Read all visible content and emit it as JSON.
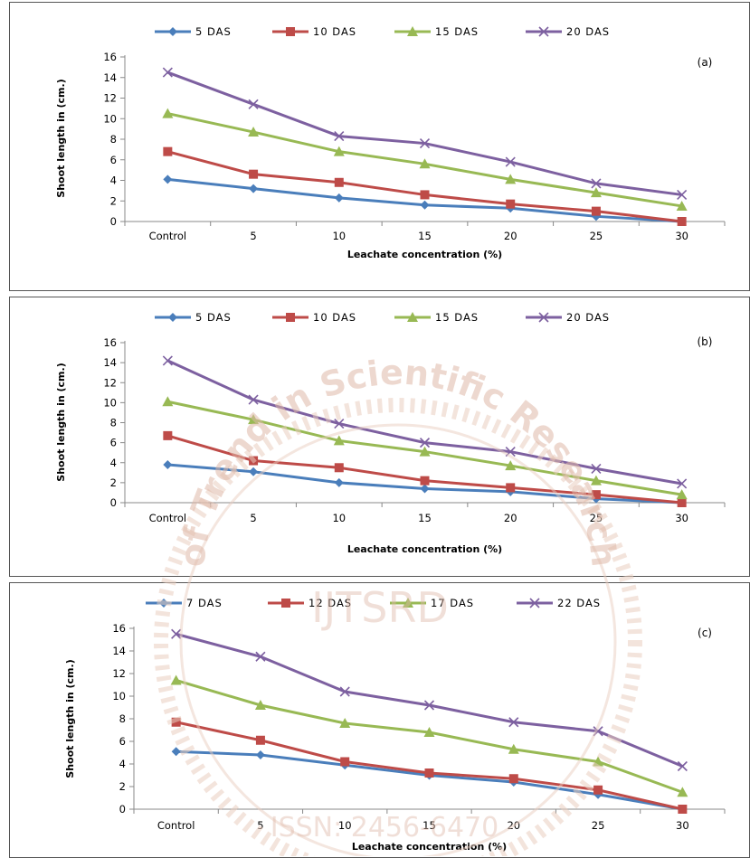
{
  "chart_data": [
    {
      "type": "line",
      "panel_label": "(a)",
      "categories": [
        "Control",
        "5",
        "10",
        "15",
        "20",
        "25",
        "30"
      ],
      "xlabel": "Leachate concentration  (%)",
      "ylabel": "Shoot length in (cm.)",
      "ylim": [
        0,
        16
      ],
      "yticks": [
        "0",
        "2",
        "4",
        "6",
        "8",
        "10",
        "12",
        "14",
        "16"
      ],
      "grid": false,
      "legend": "top",
      "series": [
        {
          "name": "5 DAS",
          "color": "#4a7ebb",
          "marker": "diamond",
          "values": [
            4.1,
            3.2,
            2.3,
            1.6,
            1.3,
            0.5,
            0.0
          ]
        },
        {
          "name": "10 DAS",
          "color": "#be4b48",
          "marker": "square",
          "values": [
            6.8,
            4.6,
            3.8,
            2.6,
            1.7,
            1.0,
            0.0
          ]
        },
        {
          "name": "15 DAS",
          "color": "#98b954",
          "marker": "triangle",
          "values": [
            10.5,
            8.7,
            6.8,
            5.6,
            4.1,
            2.8,
            1.5
          ]
        },
        {
          "name": "20 DAS",
          "color": "#7d60a0",
          "marker": "x",
          "values": [
            14.5,
            11.4,
            8.3,
            7.6,
            5.8,
            3.7,
            2.6
          ]
        }
      ]
    },
    {
      "type": "line",
      "panel_label": "(b)",
      "categories": [
        "Control",
        "5",
        "10",
        "15",
        "20",
        "25",
        "30"
      ],
      "xlabel": "Leachate concentration  (%)",
      "ylabel": "Shoot length in (cm.)",
      "ylim": [
        0,
        16
      ],
      "yticks": [
        "0",
        "2",
        "4",
        "6",
        "8",
        "10",
        "12",
        "14",
        "16"
      ],
      "grid": false,
      "legend": "top",
      "series": [
        {
          "name": "5 DAS",
          "color": "#4a7ebb",
          "marker": "diamond",
          "values": [
            3.8,
            3.1,
            2.0,
            1.4,
            1.1,
            0.4,
            0.0
          ]
        },
        {
          "name": "10 DAS",
          "color": "#be4b48",
          "marker": "square",
          "values": [
            6.7,
            4.2,
            3.5,
            2.2,
            1.5,
            0.8,
            0.0
          ]
        },
        {
          "name": "15 DAS",
          "color": "#98b954",
          "marker": "triangle",
          "values": [
            10.1,
            8.3,
            6.2,
            5.1,
            3.7,
            2.2,
            0.8
          ]
        },
        {
          "name": "20 DAS",
          "color": "#7d60a0",
          "marker": "x",
          "values": [
            14.2,
            10.3,
            7.9,
            6.0,
            5.1,
            3.4,
            1.9
          ]
        }
      ]
    },
    {
      "type": "line",
      "panel_label": "(c)",
      "categories": [
        "Control",
        "5",
        "10",
        "15",
        "20",
        "25",
        "30"
      ],
      "xlabel": "Leachate concentration  (%)",
      "ylabel": "Shoot length in (cm.)",
      "ylim": [
        0,
        16
      ],
      "yticks": [
        "0",
        "2",
        "4",
        "6",
        "8",
        "10",
        "12",
        "14",
        "16"
      ],
      "grid": false,
      "legend": "top",
      "series": [
        {
          "name": "7 DAS",
          "color": "#4a7ebb",
          "marker": "diamond",
          "values": [
            5.1,
            4.8,
            3.9,
            3.0,
            2.4,
            1.3,
            0.0
          ]
        },
        {
          "name": "12 DAS",
          "color": "#be4b48",
          "marker": "square",
          "values": [
            7.7,
            6.1,
            4.2,
            3.2,
            2.7,
            1.7,
            0.0
          ]
        },
        {
          "name": "17 DAS",
          "color": "#98b954",
          "marker": "triangle",
          "values": [
            11.4,
            9.2,
            7.6,
            6.8,
            5.3,
            4.2,
            1.5
          ]
        },
        {
          "name": "22 DAS",
          "color": "#7d60a0",
          "marker": "x",
          "values": [
            15.5,
            13.5,
            10.4,
            9.2,
            7.7,
            6.9,
            3.8
          ]
        }
      ]
    }
  ],
  "watermark": {
    "arc_text": "of Trend in Scientific Research",
    "center_text": "IJTSRD",
    "issn_text": "ISSN: 2456-6470",
    "color": "#e0b9a9"
  }
}
